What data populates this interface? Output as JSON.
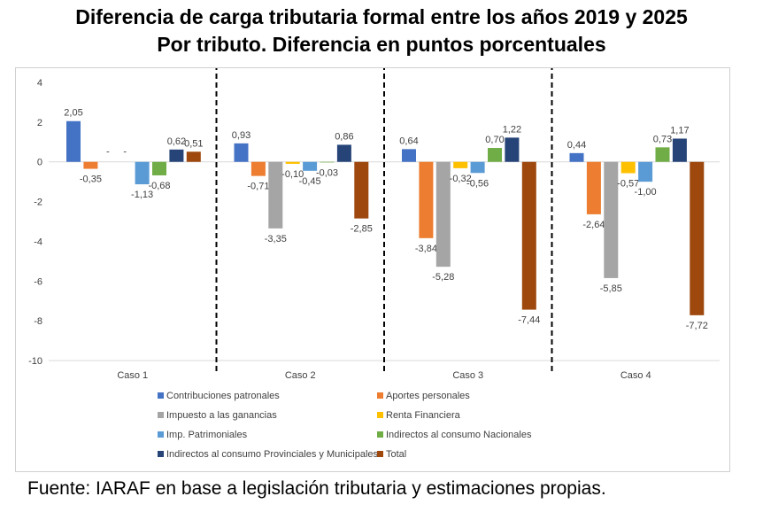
{
  "title_line1": "Diferencia de carga tributaria formal entre los años 2019 y 2025",
  "title_line2": "Por tributo. Diferencia en puntos porcentuales",
  "source": "Fuente: IARAF en base a legislación tributaria y estimaciones propias.",
  "chart_data": {
    "type": "bar",
    "categories": [
      "Caso 1",
      "Caso 2",
      "Caso 3",
      "Caso 4"
    ],
    "ylim": [
      -10,
      4
    ],
    "yticks": [
      4,
      2,
      0,
      -2,
      -4,
      -6,
      -8,
      -10
    ],
    "grid": false,
    "legend_position": "bottom",
    "series": [
      {
        "name": "Contribuciones patronales",
        "color": "#4472C4",
        "values": [
          2.05,
          0.93,
          0.64,
          0.44
        ],
        "labels": [
          "2,05",
          "0,93",
          "0,64",
          "0,44"
        ]
      },
      {
        "name": "Aportes personales",
        "color": "#ED7D31",
        "values": [
          -0.35,
          -0.71,
          -3.84,
          -2.64
        ],
        "labels": [
          "-0,35",
          "-0,71",
          "-3,84",
          "-2,64"
        ]
      },
      {
        "name": "Impuesto a las ganancias",
        "color": "#A5A5A5",
        "values": [
          0,
          -3.35,
          -5.28,
          -5.85
        ],
        "labels": [
          "-",
          "-3,35",
          "-5,28",
          "-5,85"
        ]
      },
      {
        "name": "Renta Financiera",
        "color": "#FFC000",
        "values": [
          0,
          -0.1,
          -0.32,
          -0.57
        ],
        "labels": [
          "-",
          "-0,10",
          "-0,32",
          "-0,57"
        ]
      },
      {
        "name": "Imp. Patrimoniales",
        "color": "#5B9BD5",
        "values": [
          -1.13,
          -0.45,
          -0.56,
          -1.0
        ],
        "labels": [
          "-1,13",
          "-0,45",
          "-0,56",
          "-1,00"
        ]
      },
      {
        "name": "Indirectos al consumo Nacionales",
        "color": "#70AD47",
        "values": [
          -0.68,
          -0.03,
          0.7,
          0.73
        ],
        "labels": [
          "-0,68",
          "-0,03",
          "0,70",
          "0,73"
        ]
      },
      {
        "name": "Indirectos al consumo Provinciales y Municipales",
        "color": "#264478",
        "values": [
          0.62,
          0.86,
          1.22,
          1.17
        ],
        "labels": [
          "0,62",
          "0,86",
          "1,22",
          "1,17"
        ]
      },
      {
        "name": "Total",
        "color": "#9E480E",
        "values": [
          0.51,
          -2.85,
          -7.44,
          -7.72
        ],
        "labels": [
          "0,51",
          "-2,85",
          "-7,44",
          "-7,72"
        ]
      }
    ]
  }
}
